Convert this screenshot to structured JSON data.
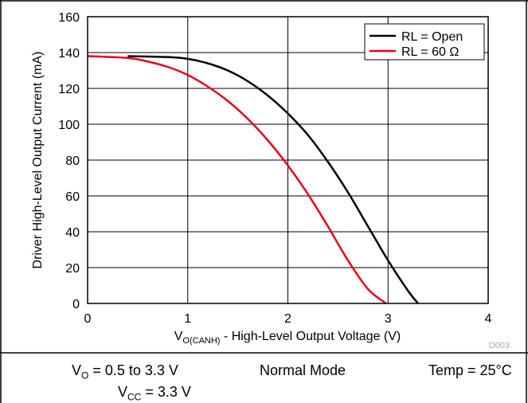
{
  "chart_data": {
    "type": "line",
    "xlabel": {
      "main": "V",
      "sub": "O(CANH)",
      "rest": " - High-Level Output Voltage (V)"
    },
    "ylabel": "Driver High-Level Output Current (mA)",
    "xlim": [
      0,
      4
    ],
    "ylim": [
      0,
      160
    ],
    "x_ticks": [
      "0",
      "1",
      "2",
      "3",
      "4"
    ],
    "y_ticks": [
      "0",
      "20",
      "40",
      "60",
      "80",
      "100",
      "120",
      "140",
      "160"
    ],
    "grid": true,
    "legend_position": "top-right",
    "figure_id": "D003",
    "series": [
      {
        "name": "RL = Open",
        "color": "#000000",
        "x": [
          0.4,
          0.8,
          1.0,
          1.2,
          1.4,
          1.6,
          1.8,
          2.0,
          2.2,
          2.4,
          2.6,
          2.8,
          3.0,
          3.2,
          3.3
        ],
        "y": [
          138,
          137.5,
          136.5,
          134,
          130,
          124,
          116,
          106,
          94,
          79,
          62,
          43,
          24,
          7,
          0
        ]
      },
      {
        "name": "RL = 60 Ω",
        "color": "#e8001c",
        "x": [
          0.0,
          0.4,
          0.6,
          0.8,
          1.0,
          1.2,
          1.4,
          1.6,
          1.8,
          2.0,
          2.2,
          2.4,
          2.6,
          2.8,
          2.98
        ],
        "y": [
          138,
          137,
          135,
          132,
          127.5,
          121,
          113,
          103,
          91,
          77,
          61,
          43,
          24,
          8,
          0
        ]
      }
    ]
  },
  "conditions": {
    "vo": {
      "main": "V",
      "sub": "O",
      "rest": " = 0.5 to 3.3 V"
    },
    "vcc": {
      "main": "V",
      "sub": "CC",
      "rest": " = 3.3 V"
    },
    "mode": "Normal Mode",
    "temp": "Temp = 25°C"
  }
}
